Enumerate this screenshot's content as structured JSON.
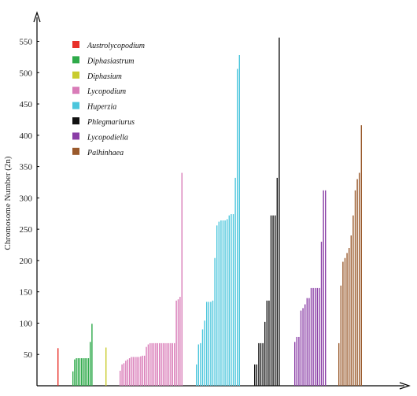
{
  "chart_data": {
    "type": "bar",
    "title": "",
    "xlabel": "",
    "ylabel": "Chromosome Number (2n)",
    "ylim": [
      0,
      600
    ],
    "yticks": [
      50,
      100,
      150,
      200,
      250,
      300,
      350,
      400,
      450,
      500,
      550
    ],
    "grid": false,
    "legend_position": "top-left",
    "series": [
      {
        "name": "Austrolycopodium",
        "color": "#e8302a",
        "values": [
          60
        ]
      },
      {
        "name": "Diphasiastrum",
        "color": "#2eaa4a",
        "values": [
          23,
          42,
          44,
          44,
          44,
          44,
          44,
          44,
          44,
          44,
          70,
          99
        ]
      },
      {
        "name": "Diphasium",
        "color": "#c9cc2e",
        "values": [
          61
        ]
      },
      {
        "name": "Lycopodium",
        "color": "#d97cb8",
        "values": [
          24,
          34,
          36,
          40,
          42,
          44,
          46,
          46,
          46,
          46,
          46,
          47,
          48,
          48,
          62,
          66,
          68,
          68,
          68,
          68,
          68,
          68,
          68,
          68,
          68,
          68,
          68,
          68,
          68,
          68,
          136,
          138,
          142,
          340
        ]
      },
      {
        "name": "Huperzia",
        "color": "#4cc6dc",
        "values": [
          34,
          66,
          68,
          90,
          104,
          134,
          134,
          134,
          136,
          204,
          256,
          262,
          264,
          264,
          264,
          266,
          272,
          274,
          274,
          332,
          506,
          528
        ]
      },
      {
        "name": "Phlegmariurus",
        "color": "#111111",
        "values": [
          34,
          34,
          68,
          68,
          68,
          102,
          136,
          136,
          272,
          272,
          272,
          332,
          556
        ]
      },
      {
        "name": "Lycopodiella",
        "color": "#8a3ea6",
        "values": [
          70,
          78,
          78,
          120,
          124,
          130,
          140,
          140,
          156,
          156,
          156,
          156,
          156,
          230,
          312,
          312
        ]
      },
      {
        "name": "Palhinhaea",
        "color": "#9a5a2c",
        "values": [
          68,
          160,
          198,
          204,
          212,
          220,
          240,
          272,
          312,
          330,
          340,
          416
        ]
      }
    ]
  }
}
